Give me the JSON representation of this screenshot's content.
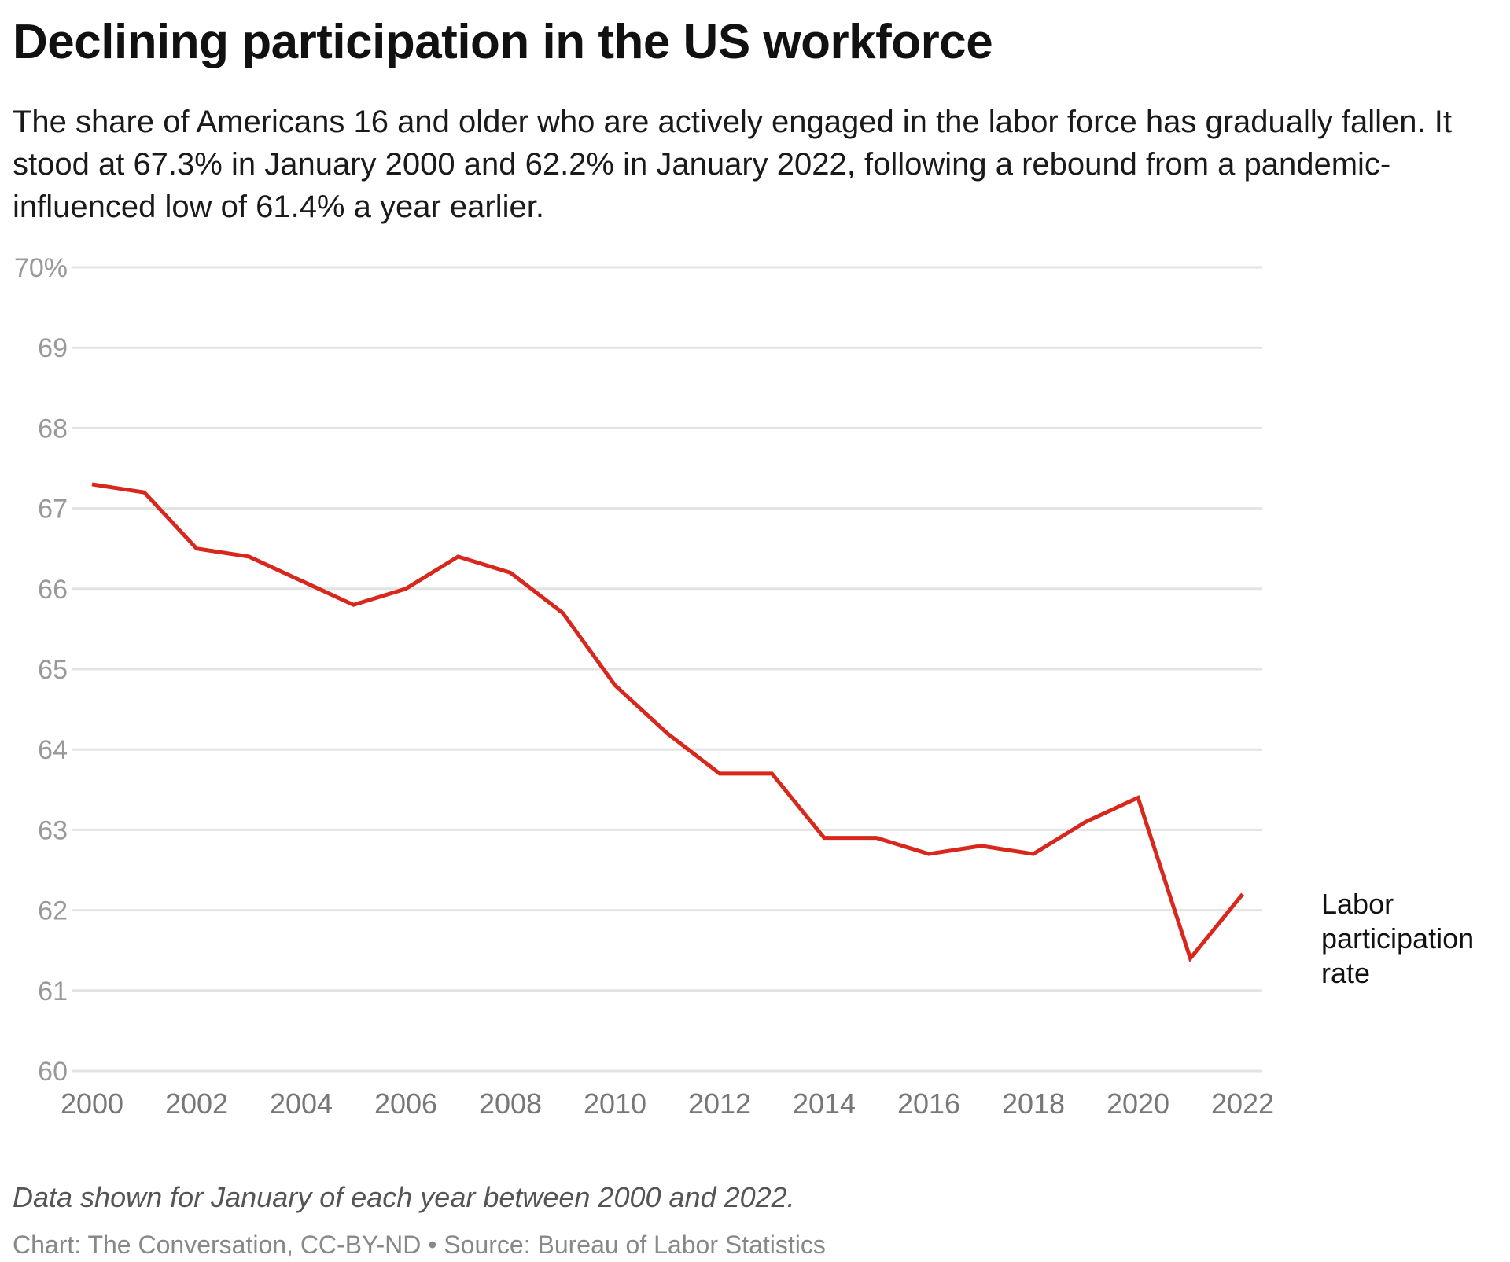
{
  "header": {
    "title": "Declining participation in the US workforce",
    "subtitle": "The share of Americans 16 and older who are actively engaged in the labor force has gradually fallen. It stood at 67.3% in January 2000 and 62.2% in January 2022, following a rebound from a pandemic-influenced low of 61.4% a year earlier."
  },
  "footer": {
    "note": "Data shown for January of each year between 2000 and 2022.",
    "source": "Chart: The Conversation, CC-BY-ND • Source: Bureau of Labor Statistics"
  },
  "chart_data": {
    "type": "line",
    "x": [
      2000,
      2001,
      2002,
      2003,
      2004,
      2005,
      2006,
      2007,
      2008,
      2009,
      2010,
      2011,
      2012,
      2013,
      2014,
      2015,
      2016,
      2017,
      2018,
      2019,
      2020,
      2021,
      2022
    ],
    "series": [
      {
        "name": "Labor participation rate",
        "color": "#d8281e",
        "values": [
          67.3,
          67.2,
          66.5,
          66.4,
          66.1,
          65.8,
          66.0,
          66.4,
          66.2,
          65.7,
          64.8,
          64.2,
          63.7,
          63.7,
          62.9,
          62.9,
          62.7,
          62.8,
          62.7,
          63.1,
          63.4,
          61.4,
          62.2
        ]
      }
    ],
    "xlim": [
      2000,
      2022
    ],
    "ylim": [
      60,
      70
    ],
    "x_ticks": [
      "2000",
      "2002",
      "2004",
      "2006",
      "2008",
      "2010",
      "2012",
      "2014",
      "2016",
      "2018",
      "2020",
      "2022"
    ],
    "y_ticks": [
      "60",
      "61",
      "62",
      "63",
      "64",
      "65",
      "66",
      "67",
      "68",
      "69",
      "70%"
    ],
    "grid": "horizontal",
    "legend": "direct label at line end"
  }
}
